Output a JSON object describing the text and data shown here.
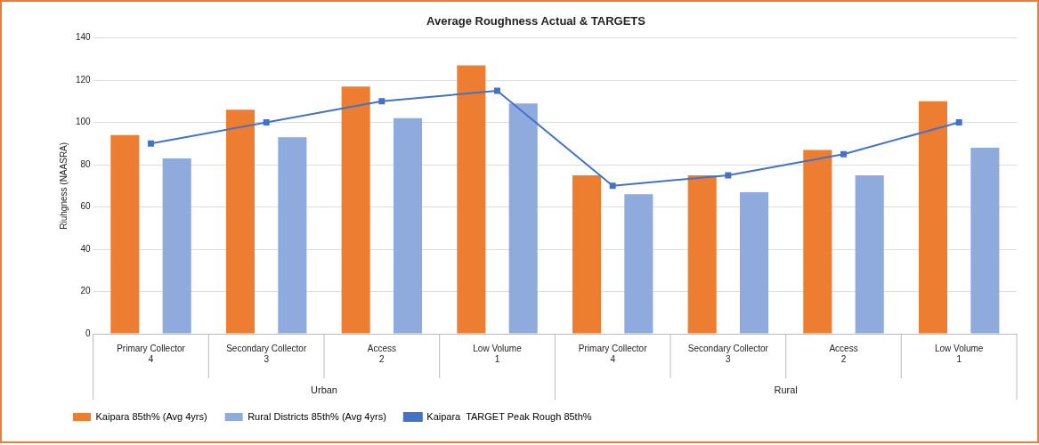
{
  "chart_data": {
    "type": "bar",
    "title": "Average Roughness Actual & TARGETS",
    "ylabel": "Riuhgness (NAASRA)",
    "categories": [
      "Primary Collector\n4",
      "Secondary Collector\n3",
      "Access\n2",
      "Low Volume\n1",
      "Primary Collector\n4",
      "Secondary Collector\n3",
      "Access\n2",
      "Low Volume\n1"
    ],
    "annotations": [
      "Urban",
      "Rural"
    ],
    "series": [
      {
        "name": "Kaipara 85th% (Avg 4yrs)",
        "color": "#ed7d31",
        "values": [
          94,
          106,
          117,
          127,
          75,
          75,
          87,
          110
        ]
      },
      {
        "name": "Rural Districts 85th% (Avg 4yrs)",
        "color": "#8faadc",
        "values": [
          83,
          93,
          102,
          109,
          66,
          67,
          75,
          88
        ]
      },
      {
        "name": "Kaipara  TARGET Peak Rough 85th%",
        "type": "line",
        "color": "#4472c4",
        "marker": "square",
        "values": [
          90,
          100,
          110,
          115,
          70,
          75,
          85,
          100
        ]
      }
    ],
    "ylim": [
      0,
      140
    ],
    "yticks": [
      0,
      20,
      40,
      60,
      80,
      100,
      120,
      140
    ],
    "grid": "y",
    "legend": "bottom"
  }
}
